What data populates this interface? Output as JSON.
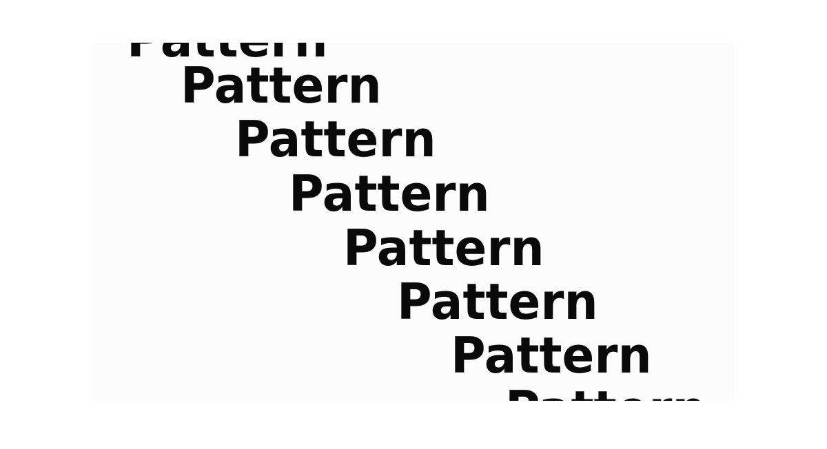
{
  "pattern": {
    "words": [
      "Pattern",
      "Pattern",
      "Pattern",
      "Pattern",
      "Pattern",
      "Pattern",
      "Pattern",
      "Pattern"
    ]
  },
  "colors": {
    "text": "#0a0a0a",
    "panel_background": "#fcfcfc",
    "page_background": "#ffffff"
  }
}
